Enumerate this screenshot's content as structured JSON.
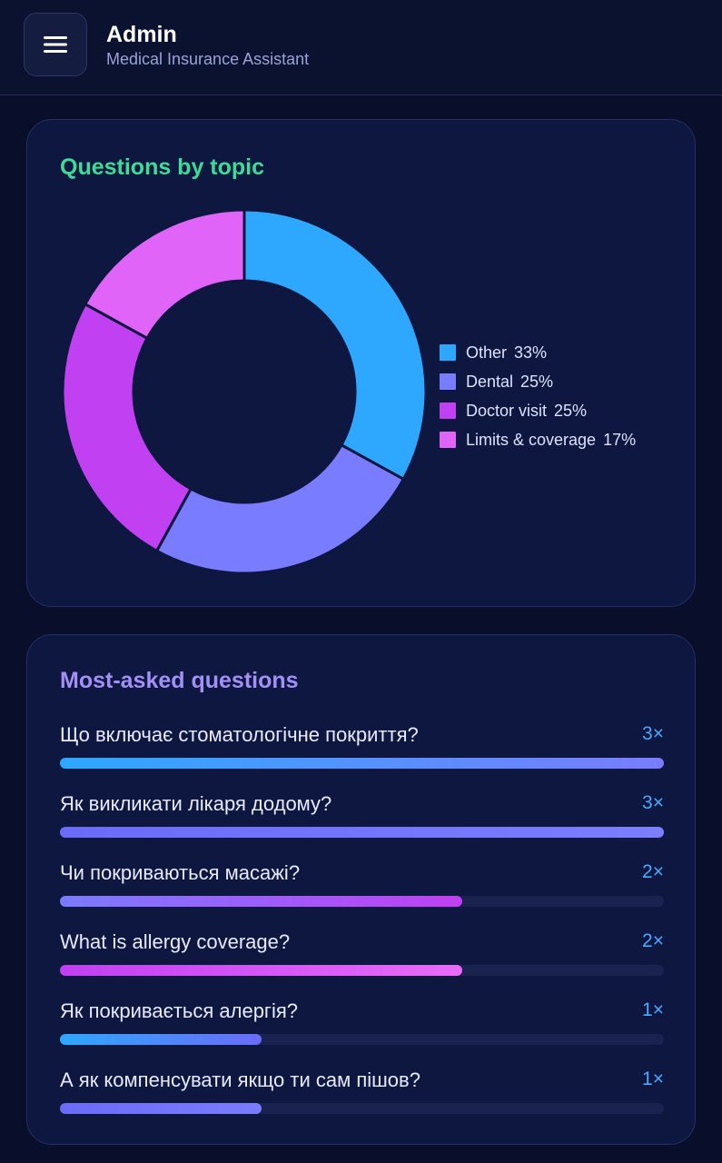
{
  "header": {
    "title": "Admin",
    "subtitle": "Medical Insurance Assistant",
    "menu_icon": "hamburger-menu-icon"
  },
  "topics_card": {
    "title": "Questions by topic"
  },
  "chart_data": {
    "type": "pie",
    "title": "Questions by topic",
    "donut": true,
    "legend_position": "right",
    "categories": [
      "Other",
      "Dental",
      "Doctor visit",
      "Limits & coverage"
    ],
    "values": [
      33,
      25,
      25,
      17
    ],
    "labels": [
      "33%",
      "25%",
      "25%",
      "17%"
    ],
    "colors": [
      "#2ea8ff",
      "#7a7cff",
      "#c040f2",
      "#e064f7"
    ]
  },
  "questions_card": {
    "title": "Most-asked questions",
    "max_count": 3,
    "items": [
      {
        "text": "Що включає стоматологічне покриття?",
        "count": 3,
        "count_label": "3×",
        "color_from": "#2ea8ff",
        "color_to": "#7a7cff"
      },
      {
        "text": "Як викликати лікаря додому?",
        "count": 3,
        "count_label": "3×",
        "color_from": "#6a6cf8",
        "color_to": "#7c7eff"
      },
      {
        "text": "Чи покриваються масажі?",
        "count": 2,
        "count_label": "2×",
        "color_from": "#7a7cff",
        "color_to": "#c040f2"
      },
      {
        "text": "What is allergy coverage?",
        "count": 2,
        "count_label": "2×",
        "color_from": "#c040f2",
        "color_to": "#e86cf7"
      },
      {
        "text": "Як покривається алергія?",
        "count": 1,
        "count_label": "1×",
        "color_from": "#2ea8ff",
        "color_to": "#6a6cf8"
      },
      {
        "text": "А як компенсувати якщо ти сам пішов?",
        "count": 1,
        "count_label": "1×",
        "color_from": "#6a6cf8",
        "color_to": "#7a7cff"
      }
    ]
  }
}
